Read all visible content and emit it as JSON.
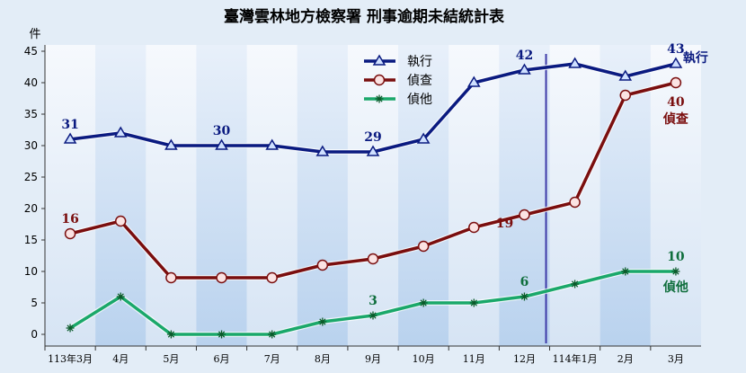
{
  "chart_data": {
    "type": "line",
    "title": "臺灣雲林地方檢察署  刑事逾期未結統計表",
    "ylabel": "件",
    "ylim": [
      0,
      45
    ],
    "yticks": [
      0,
      5,
      10,
      15,
      20,
      25,
      30,
      35,
      40,
      45
    ],
    "categories": [
      "113年3月",
      "4月",
      "5月",
      "6月",
      "7月",
      "8月",
      "9月",
      "10月",
      "11月",
      "12月",
      "114年1月",
      "2月",
      "3月"
    ],
    "series": [
      {
        "name": "執行",
        "color": "#0a1a80",
        "marker": "triangle",
        "values": [
          31,
          32,
          30,
          30,
          30,
          29,
          29,
          31,
          40,
          42,
          43,
          41,
          43
        ]
      },
      {
        "name": "偵查",
        "color": "#7a0e0e",
        "marker": "circle",
        "values": [
          16,
          18,
          9,
          9,
          9,
          11,
          12,
          14,
          17,
          19,
          21,
          38,
          40
        ]
      },
      {
        "name": "偵他",
        "color": "#1aa86a",
        "marker": "star",
        "values": [
          1,
          6,
          0,
          0,
          0,
          2,
          3,
          5,
          5,
          6,
          8,
          10,
          10
        ]
      }
    ],
    "annotations": [
      {
        "series": 0,
        "index": 0,
        "text": "31"
      },
      {
        "series": 0,
        "index": 3,
        "text": "30"
      },
      {
        "series": 0,
        "index": 6,
        "text": "29"
      },
      {
        "series": 0,
        "index": 9,
        "text": "42"
      },
      {
        "series": 0,
        "index": 12,
        "text": "43"
      },
      {
        "series": 1,
        "index": 0,
        "text": "16"
      },
      {
        "series": 1,
        "index": 9,
        "text": "19"
      },
      {
        "series": 1,
        "index": 12,
        "text": "40"
      },
      {
        "series": 2,
        "index": 6,
        "text": "3"
      },
      {
        "series": 2,
        "index": 9,
        "text": "6"
      },
      {
        "series": 2,
        "index": 12,
        "text": "10"
      }
    ],
    "end_labels": [
      "執行",
      "偵查",
      "偵他"
    ],
    "divider_after_category": "12月",
    "legend_position": "top-center",
    "grid": false,
    "background": "alternating vertical bands"
  }
}
